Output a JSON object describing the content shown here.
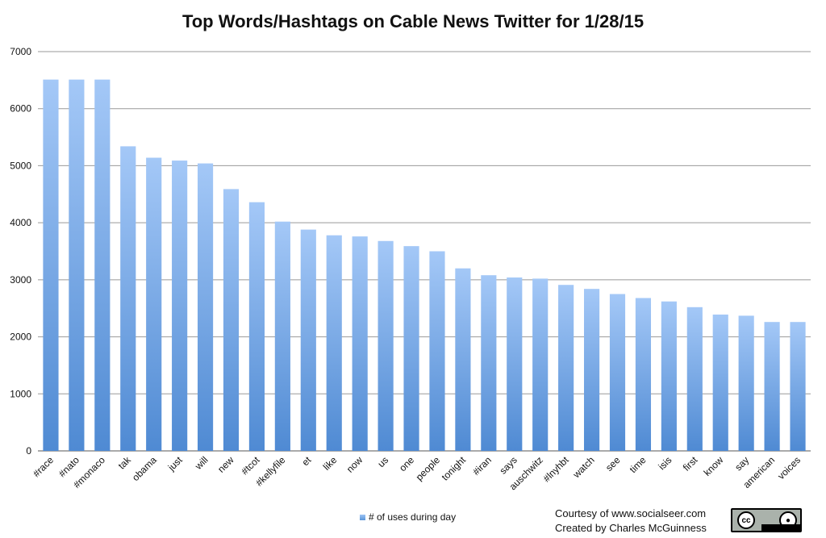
{
  "chart_data": {
    "type": "bar",
    "title": "Top Words/Hashtags on Cable News Twitter for 1/28/15",
    "categories": [
      "#race",
      "#nato",
      "#monaco",
      "tak",
      "obama",
      "just",
      "will",
      "new",
      "#tcot",
      "#kellyfile",
      "et",
      "like",
      "now",
      "us",
      "one",
      "people",
      "tonight",
      "#iran",
      "says",
      "auschwitz",
      "#lnyhbt",
      "watch",
      "see",
      "time",
      "isis",
      "first",
      "know",
      "say",
      "american",
      "voices"
    ],
    "series": [
      {
        "name": "# of uses during day",
        "values": [
          6510,
          6510,
          6510,
          5340,
          5140,
          5090,
          5040,
          4590,
          4360,
          4020,
          3880,
          3780,
          3760,
          3680,
          3590,
          3500,
          3200,
          3080,
          3040,
          3020,
          2910,
          2840,
          2750,
          2680,
          2620,
          2520,
          2390,
          2370,
          2260,
          2260
        ]
      }
    ],
    "ylim": [
      0,
      7000
    ],
    "yticks": [
      0,
      1000,
      2000,
      3000,
      4000,
      5000,
      6000,
      7000
    ],
    "grid": true,
    "legend_position": "bottom",
    "bar_color_top": "#a4c8f7",
    "bar_color_bottom": "#4f8ad3"
  },
  "credits": {
    "line1": "Courtesy of www.socialseer.com",
    "line2": "Created by Charles McGuinness"
  },
  "badge": {
    "icon": "creative-commons-by-icon",
    "cc_text": "cc",
    "by_text": "BY"
  }
}
